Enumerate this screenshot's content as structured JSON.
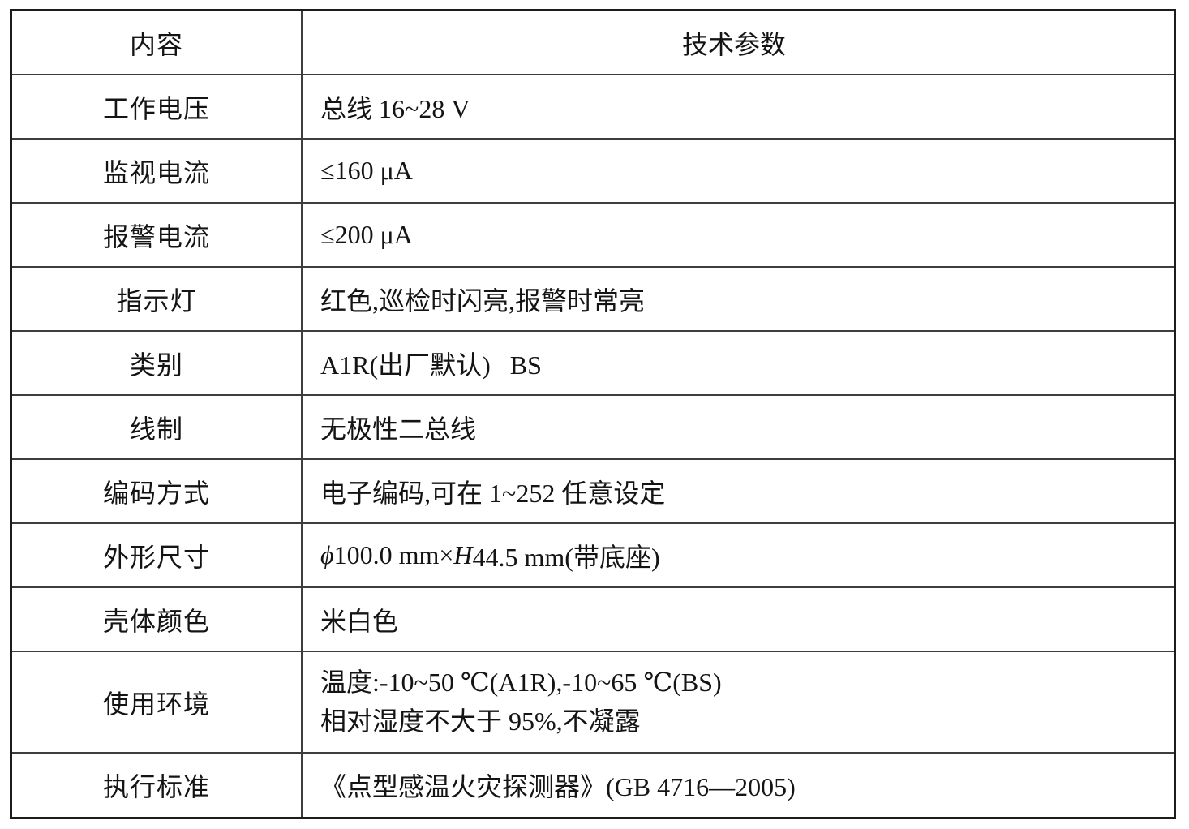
{
  "colors": {
    "background": "#ffffff",
    "text": "#141414",
    "outer_border": "#1c1c1c",
    "inner_border": "#3d3d3d"
  },
  "table": {
    "header": {
      "col1": "内容",
      "col2": "技术参数"
    },
    "rows": [
      {
        "label": "工作电压",
        "value": "总线 16~28 V"
      },
      {
        "label": "监视电流",
        "value": "≤160 μA"
      },
      {
        "label": "报警电流",
        "value": "≤200 μA"
      },
      {
        "label": "指示灯",
        "value": "红色,巡检时闪亮,报警时常亮"
      },
      {
        "label": "类别",
        "value": "A1R(出厂默认)   BS"
      },
      {
        "label": "线制",
        "value": "无极性二总线"
      },
      {
        "label": "编码方式",
        "value": "电子编码,可在 1~252 任意设定"
      },
      {
        "label": "外形尺寸",
        "value_phi": "ϕ",
        "value_pre": "100.0 mm×",
        "value_h": "H",
        "value_post": "44.5 mm(带底座)"
      },
      {
        "label": "壳体颜色",
        "value": "米白色"
      },
      {
        "label": "使用环境",
        "value": "温度:-10~50 ℃(A1R),-10~65 ℃(BS)",
        "value2": "相对湿度不大于 95%,不凝露"
      },
      {
        "label": "执行标准",
        "value": "《点型感温火灾探测器》(GB 4716—2005)"
      }
    ]
  }
}
